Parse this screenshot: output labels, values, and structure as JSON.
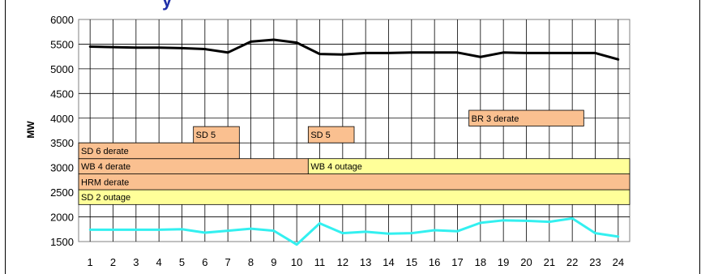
{
  "chart_data": {
    "type": "line",
    "title_fragment": "y",
    "ylabel": "MW",
    "xlabel": "",
    "ylim": [
      1500,
      6000
    ],
    "yticks": [
      1500,
      2000,
      2500,
      3000,
      3500,
      4000,
      4500,
      5000,
      5500,
      6000
    ],
    "x": [
      1,
      2,
      3,
      4,
      5,
      6,
      7,
      8,
      9,
      10,
      11,
      12,
      13,
      14,
      15,
      16,
      17,
      18,
      19,
      20,
      21,
      22,
      23,
      24
    ],
    "grid": true,
    "series": [
      {
        "color": "#000000",
        "values": [
          5450,
          5440,
          5430,
          5430,
          5420,
          5400,
          5330,
          5550,
          5590,
          5530,
          5300,
          5290,
          5320,
          5320,
          5330,
          5330,
          5330,
          5240,
          5330,
          5320,
          5320,
          5320,
          5320,
          5190
        ]
      },
      {
        "color": "#33f0f0",
        "values": [
          1740,
          1740,
          1740,
          1740,
          1750,
          1680,
          1720,
          1760,
          1720,
          1440,
          1870,
          1670,
          1700,
          1660,
          1670,
          1730,
          1710,
          1880,
          1930,
          1920,
          1900,
          1970,
          1670,
          1600
        ]
      }
    ],
    "bands": [
      {
        "label": "SD 2 outage",
        "x_start": 0.5,
        "x_end": 24.5,
        "y_low": 2250,
        "y_high": 2550,
        "color": "#ffff99"
      },
      {
        "label": "HRM derate",
        "x_start": 0.5,
        "x_end": 24.5,
        "y_low": 2550,
        "y_high": 2870,
        "color": "#fac090"
      },
      {
        "label": "WB 4 derate",
        "x_start": 0.5,
        "x_end": 10.5,
        "y_low": 2870,
        "y_high": 3180,
        "color": "#fac090"
      },
      {
        "label": "WB 4 outage",
        "x_start": 10.5,
        "x_end": 24.5,
        "y_low": 2870,
        "y_high": 3180,
        "color": "#ffff99"
      },
      {
        "label": "SD 6 derate",
        "x_start": 0.5,
        "x_end": 7.5,
        "y_low": 3180,
        "y_high": 3500,
        "color": "#fac090"
      },
      {
        "label": "SD 5",
        "x_start": 5.5,
        "x_end": 7.5,
        "y_low": 3500,
        "y_high": 3830,
        "color": "#fac090"
      },
      {
        "label": "SD 5",
        "x_start": 10.5,
        "x_end": 12.5,
        "y_low": 3500,
        "y_high": 3830,
        "color": "#fac090"
      },
      {
        "label": "BR 3 derate",
        "x_start": 17.5,
        "x_end": 22.5,
        "y_low": 3840,
        "y_high": 4160,
        "color": "#fac090"
      }
    ]
  }
}
